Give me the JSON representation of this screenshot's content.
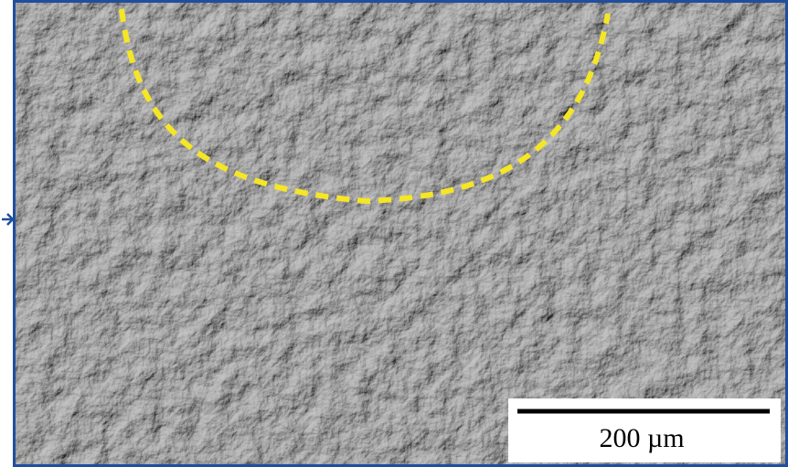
{
  "scale_bar": {
    "label": "200 µm"
  }
}
